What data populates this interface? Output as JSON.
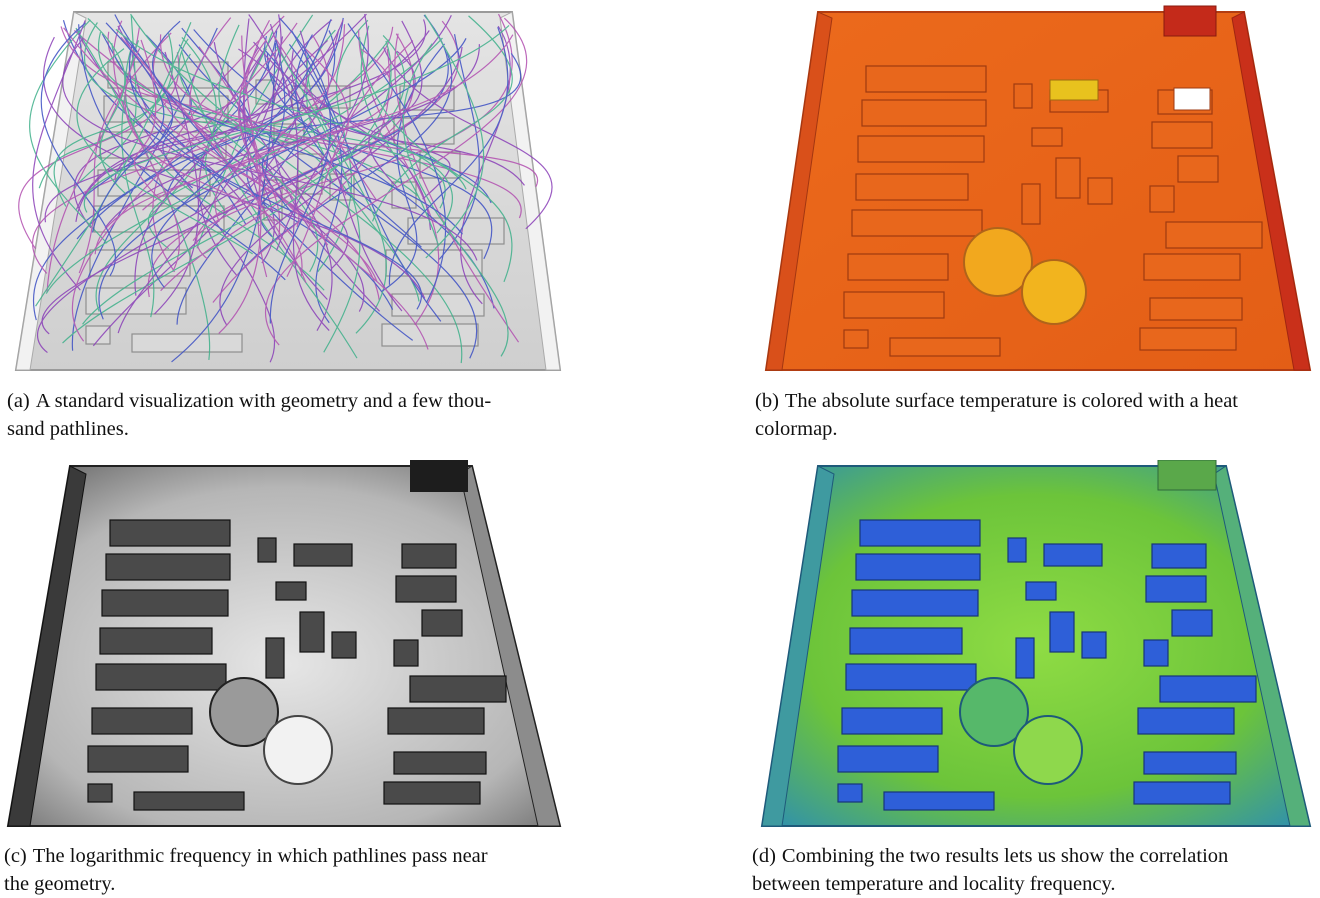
{
  "figure": {
    "panels": [
      {
        "id": "a",
        "tag": "(a)",
        "caption_line1": "A standard visualization with geometry and a few thou-",
        "caption_line2": "sand pathlines.",
        "render": "pathlines over gray factory-hall geometry"
      },
      {
        "id": "b",
        "tag": "(b)",
        "caption_line1": "The absolute surface temperature is colored with a heat",
        "caption_line2": "colormap.",
        "render": "geometry colored with heat colormap"
      },
      {
        "id": "c",
        "tag": "(c)",
        "caption_line1": "The logarithmic frequency in which pathlines pass near",
        "caption_line2": "the geometry.",
        "render": "geometry shaded in grayscale by frequency"
      },
      {
        "id": "d",
        "tag": "(d)",
        "caption_line1": "Combining the two results lets us show the correlation",
        "caption_line2": "between temperature and locality frequency.",
        "render": "geometry colored blue-green by combined measure"
      }
    ],
    "colors": {
      "heat_base": "#e8671c",
      "heat_edge": "#c9301a",
      "heat_hot": "#f2b41e",
      "gray_floor": "#bdbdbd",
      "gray_dark": "#2b2b2b",
      "combo_green": "#7ed23c",
      "combo_blue": "#2e5fd8",
      "pathline_purple": "#8a3fb8",
      "pathline_blue": "#3c4fc4",
      "pathline_green": "#3fb08a"
    }
  }
}
